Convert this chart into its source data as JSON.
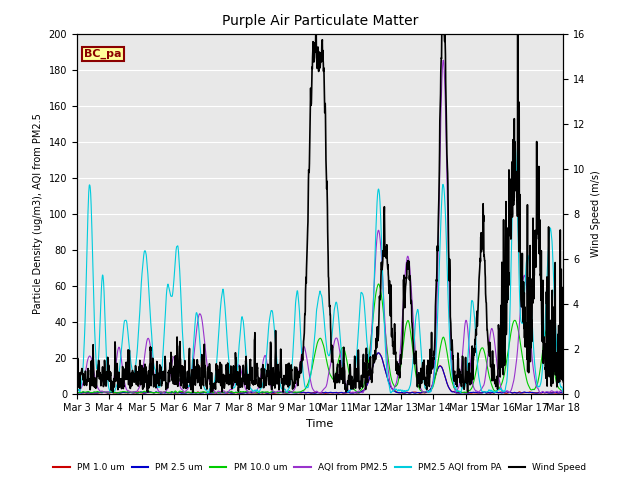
{
  "title": "Purple Air Particulate Matter",
  "xlabel": "Time",
  "ylabel_left": "Particle Density (ug/m3), AQI from PM2.5",
  "ylabel_right": "Wind Speed (m/s)",
  "annotation_text": "BC_pa",
  "annotation_bg": "#FFFF99",
  "annotation_border": "#8B0000",
  "ylim_left": [
    0,
    200
  ],
  "ylim_right": [
    0,
    16
  ],
  "xtick_labels": [
    "Mar 3",
    "Mar 4",
    "Mar 5",
    "Mar 6",
    "Mar 7",
    "Mar 8",
    "Mar 9",
    "Mar 10",
    "Mar 11",
    "Mar 12",
    "Mar 13",
    "Mar 14",
    "Mar 15",
    "Mar 16",
    "Mar 17",
    "Mar 18"
  ],
  "bg_color": "#E8E8E8",
  "fig_bg_color": "#FFFFFF",
  "legend_entries": [
    {
      "label": "PM 1.0 um",
      "color": "#CC0000",
      "lw": 0.8
    },
    {
      "label": "PM 2.5 um",
      "color": "#0000CC",
      "lw": 0.8
    },
    {
      "label": "PM 10.0 um",
      "color": "#00CC00",
      "lw": 0.8
    },
    {
      "label": "AQI from PM2.5",
      "color": "#9933CC",
      "lw": 0.8
    },
    {
      "label": "PM2.5 AQI from PA",
      "color": "#00CCDD",
      "lw": 0.8
    },
    {
      "label": "Wind Speed",
      "color": "#000000",
      "lw": 1.2
    }
  ],
  "n_points": 2000,
  "n_days": 15
}
